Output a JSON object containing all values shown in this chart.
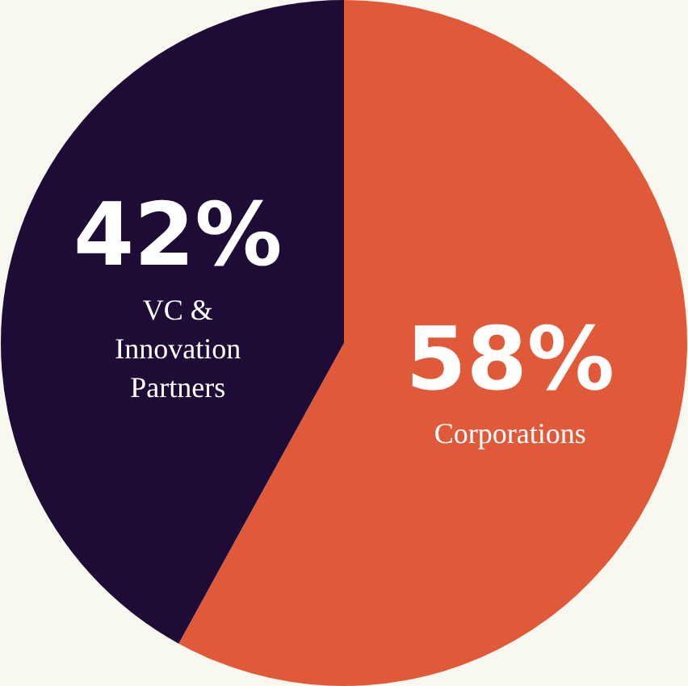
{
  "chart_data": {
    "type": "pie",
    "categories": [
      "Corporations",
      "VC & Innovation Partners"
    ],
    "values": [
      58,
      42
    ],
    "colors": [
      "#e05a3a",
      "#1e0b36"
    ],
    "value_labels": [
      "58%",
      "42%"
    ],
    "legend": false
  }
}
